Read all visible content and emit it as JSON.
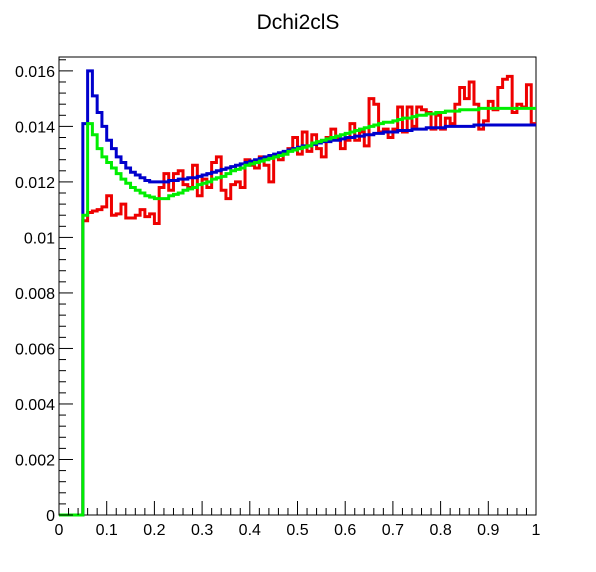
{
  "chart_data": {
    "type": "line",
    "title": "Dchi2clS",
    "xlabel": "",
    "ylabel": "",
    "xlim": [
      0,
      1
    ],
    "ylim": [
      0,
      0.0165
    ],
    "grid": false,
    "x_ticks": [
      "0",
      "0.1",
      "0.2",
      "0.3",
      "0.4",
      "0.5",
      "0.6",
      "0.7",
      "0.8",
      "0.9",
      "1"
    ],
    "x_tick_values": [
      0,
      0.1,
      0.2,
      0.3,
      0.4,
      0.5,
      0.6,
      0.7,
      0.8,
      0.9,
      1
    ],
    "y_ticks": [
      "0",
      "0.002",
      "0.004",
      "0.006",
      "0.008",
      "0.01",
      "0.012",
      "0.014",
      "0.016"
    ],
    "y_tick_values": [
      0,
      0.002,
      0.004,
      0.006,
      0.008,
      0.01,
      0.012,
      0.014,
      0.016
    ],
    "bin_width": 0.01,
    "series": [
      {
        "color": "#ee0000",
        "values": [
          0,
          0,
          0,
          0,
          0,
          0.0106,
          0.0109,
          0.01095,
          0.011,
          0.0111,
          0.0115,
          0.0108,
          0.01085,
          0.0112,
          0.0107,
          0.0107,
          0.0108,
          0.011,
          0.01075,
          0.01085,
          0.0105,
          0.0118,
          0.0123,
          0.0117,
          0.0123,
          0.0124,
          0.0119,
          0.0118,
          0.0126,
          0.0115,
          0.0121,
          0.0118,
          0.0127,
          0.0129,
          0.0117,
          0.0114,
          0.0119,
          0.012,
          0.0118,
          0.0128,
          0.0126,
          0.0125,
          0.0129,
          0.0126,
          0.012,
          0.0129,
          0.0128,
          0.013,
          0.0132,
          0.0136,
          0.013,
          0.0138,
          0.0131,
          0.0137,
          0.0132,
          0.0129,
          0.0136,
          0.0139,
          0.0136,
          0.0132,
          0.0135,
          0.0141,
          0.0135,
          0.0138,
          0.0133,
          0.015,
          0.0148,
          0.0138,
          0.0139,
          0.0136,
          0.0139,
          0.0147,
          0.0138,
          0.0147,
          0.014,
          0.0147,
          0.0146,
          0.0145,
          0.0139,
          0.0144,
          0.0139,
          0.0143,
          0.0141,
          0.0148,
          0.0154,
          0.015,
          0.0156,
          0.0148,
          0.0139,
          0.0142,
          0.0149,
          0.0146,
          0.0154,
          0.0157,
          0.0158,
          0.0145,
          0.0148,
          0.0147,
          0.0155,
          0.0141
        ]
      },
      {
        "color": "#0000cc",
        "values": [
          0,
          0,
          0,
          0,
          0,
          0.0141,
          0.016,
          0.0151,
          0.0145,
          0.014,
          0.0135,
          0.0132,
          0.0129,
          0.0127,
          0.0125,
          0.01235,
          0.01225,
          0.01215,
          0.01205,
          0.012,
          0.012,
          0.012,
          0.012,
          0.01205,
          0.01205,
          0.0121,
          0.0121,
          0.01215,
          0.01215,
          0.0122,
          0.01225,
          0.0123,
          0.01235,
          0.0124,
          0.01245,
          0.0125,
          0.01255,
          0.0126,
          0.01265,
          0.0127,
          0.01275,
          0.0128,
          0.01285,
          0.0129,
          0.01295,
          0.013,
          0.01305,
          0.0131,
          0.01315,
          0.0132,
          0.01325,
          0.0133,
          0.0133,
          0.01335,
          0.0134,
          0.01345,
          0.01345,
          0.0135,
          0.0135,
          0.01355,
          0.0136,
          0.0136,
          0.01365,
          0.01365,
          0.0137,
          0.0137,
          0.01375,
          0.01375,
          0.0138,
          0.0138,
          0.0138,
          0.01385,
          0.01385,
          0.01385,
          0.0139,
          0.0139,
          0.0139,
          0.01395,
          0.01395,
          0.01395,
          0.01395,
          0.014,
          0.014,
          0.014,
          0.014,
          0.014,
          0.014,
          0.01405,
          0.01405,
          0.01405,
          0.01405,
          0.01405,
          0.01405,
          0.01405,
          0.01405,
          0.01405,
          0.01405,
          0.01405,
          0.01405,
          0.01405
        ]
      },
      {
        "color": "#00ee00",
        "values": [
          0,
          0,
          0,
          0,
          0,
          0.0108,
          0.0141,
          0.0137,
          0.0132,
          0.0129,
          0.0127,
          0.0125,
          0.0123,
          0.0121,
          0.01195,
          0.0118,
          0.0117,
          0.0116,
          0.0115,
          0.01145,
          0.0114,
          0.0114,
          0.0114,
          0.0115,
          0.01155,
          0.0116,
          0.0117,
          0.01175,
          0.0118,
          0.0119,
          0.01195,
          0.012,
          0.0121,
          0.01215,
          0.0122,
          0.0123,
          0.0124,
          0.01245,
          0.0125,
          0.0126,
          0.01265,
          0.0127,
          0.01275,
          0.0128,
          0.01285,
          0.0129,
          0.01295,
          0.013,
          0.0131,
          0.01315,
          0.0132,
          0.01325,
          0.0133,
          0.0134,
          0.01345,
          0.0135,
          0.01355,
          0.0136,
          0.01365,
          0.0137,
          0.01375,
          0.0138,
          0.01385,
          0.0139,
          0.01395,
          0.014,
          0.01405,
          0.0141,
          0.01415,
          0.01415,
          0.0142,
          0.01425,
          0.0143,
          0.0143,
          0.01435,
          0.0144,
          0.0144,
          0.01445,
          0.01445,
          0.0145,
          0.0145,
          0.01455,
          0.01455,
          0.01455,
          0.0146,
          0.0146,
          0.0146,
          0.0146,
          0.01465,
          0.01465,
          0.01465,
          0.01465,
          0.01465,
          0.01465,
          0.01465,
          0.01465,
          0.01465,
          0.01465,
          0.01465,
          0.01465
        ]
      }
    ]
  }
}
